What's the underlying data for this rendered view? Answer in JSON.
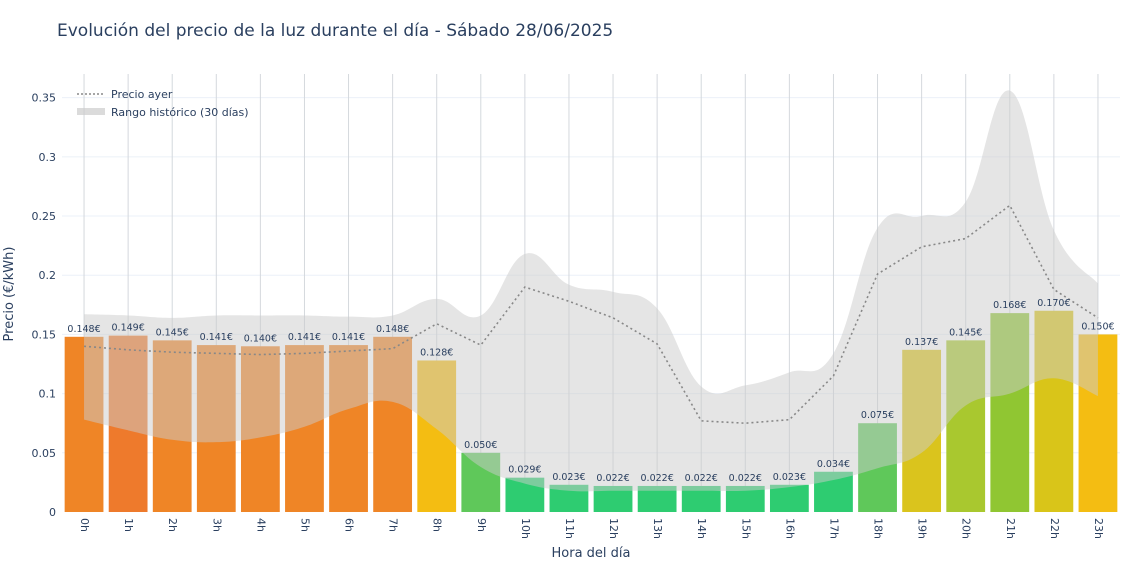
{
  "chart_data": {
    "type": "bar",
    "title": "Evolución del precio de la luz durante el día - Sábado 28/06/2025",
    "xlabel": "Hora del día",
    "ylabel": "Precio (€/kWh)",
    "ylim": [
      0,
      0.37
    ],
    "yticks": [
      0,
      0.05,
      0.1,
      0.15,
      0.2,
      0.25,
      0.3,
      0.35
    ],
    "ytick_labels": [
      "0",
      "0.05",
      "0.1",
      "0.15",
      "0.2",
      "0.25",
      "0.3",
      "0.35"
    ],
    "categories": [
      "0h",
      "1h",
      "2h",
      "3h",
      "4h",
      "5h",
      "6h",
      "7h",
      "8h",
      "9h",
      "10h",
      "11h",
      "12h",
      "13h",
      "14h",
      "15h",
      "16h",
      "17h",
      "18h",
      "19h",
      "20h",
      "21h",
      "22h",
      "23h"
    ],
    "series": [
      {
        "type": "bar",
        "values": [
          0.148,
          0.149,
          0.145,
          0.141,
          0.14,
          0.141,
          0.141,
          0.148,
          0.128,
          0.05,
          0.029,
          0.023,
          0.022,
          0.022,
          0.022,
          0.022,
          0.023,
          0.034,
          0.075,
          0.137,
          0.145,
          0.168,
          0.17,
          0.15
        ],
        "labels": [
          "0.148€",
          "0.149€",
          "0.145€",
          "0.141€",
          "0.140€",
          "0.141€",
          "0.141€",
          "0.148€",
          "0.128€",
          "0.050€",
          "0.029€",
          "0.023€",
          "0.022€",
          "0.022€",
          "0.022€",
          "0.022€",
          "0.023€",
          "0.034€",
          "0.075€",
          "0.137€",
          "0.145€",
          "0.168€",
          "0.170€",
          "0.150€"
        ],
        "colors": [
          "#ef8526",
          "#ee7a2c",
          "#ef8526",
          "#ef8526",
          "#ef8526",
          "#ef8526",
          "#ef8526",
          "#ef8526",
          "#f4bd12",
          "#5fc85a",
          "#2ecc71",
          "#2ecc71",
          "#2ecc71",
          "#2ecc71",
          "#2ecc71",
          "#2ecc71",
          "#2ecc71",
          "#2ecc71",
          "#5fc85a",
          "#dac41d",
          "#a9c82f",
          "#90c632",
          "#d9c519",
          "#f4bd12"
        ]
      },
      {
        "name": "Precio ayer",
        "type": "line",
        "style": "dotted",
        "color": "#888888",
        "values": [
          0.14,
          0.137,
          0.135,
          0.134,
          0.133,
          0.134,
          0.136,
          0.138,
          0.159,
          0.141,
          0.19,
          0.178,
          0.164,
          0.142,
          0.077,
          0.075,
          0.078,
          0.115,
          0.201,
          0.224,
          0.231,
          0.259,
          0.188,
          0.164
        ]
      },
      {
        "name": "Rango histórico (30 días)",
        "type": "band",
        "color": "#cccccc",
        "upper": [
          0.167,
          0.166,
          0.164,
          0.166,
          0.166,
          0.166,
          0.165,
          0.166,
          0.18,
          0.166,
          0.218,
          0.192,
          0.186,
          0.172,
          0.106,
          0.107,
          0.118,
          0.134,
          0.24,
          0.25,
          0.262,
          0.356,
          0.238,
          0.193
        ],
        "lower": [
          0.078,
          0.069,
          0.061,
          0.059,
          0.063,
          0.072,
          0.087,
          0.093,
          0.07,
          0.038,
          0.024,
          0.018,
          0.018,
          0.018,
          0.018,
          0.018,
          0.021,
          0.027,
          0.037,
          0.05,
          0.09,
          0.1,
          0.113,
          0.098
        ]
      }
    ],
    "legend": {
      "position": "top-left"
    },
    "grid": true
  }
}
